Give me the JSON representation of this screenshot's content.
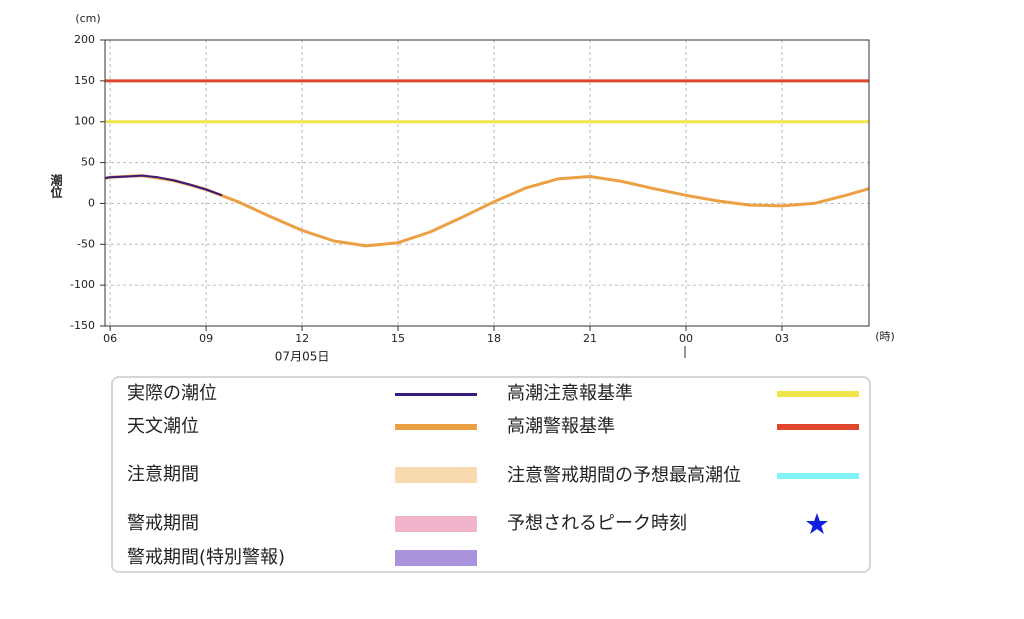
{
  "chart_data": {
    "type": "line",
    "y_unit": "(cm)",
    "x_unit": "(時)",
    "ylabel": "潮位",
    "xlim": [
      5.84,
      29.72
    ],
    "xticks": [
      {
        "value": 6,
        "label": "06"
      },
      {
        "value": 9,
        "label": "09"
      },
      12,
      15,
      18,
      21,
      {
        "value": 24,
        "label": "00"
      },
      {
        "value": 27,
        "label": "03"
      }
    ],
    "date_label": {
      "value": 12,
      "label": "07月05日"
    },
    "ylim": [
      -150,
      200
    ],
    "yticks": [
      200,
      150,
      100,
      50,
      0,
      -50,
      -100,
      -150
    ],
    "grid": true,
    "series": [
      {
        "name": "実際の潮位",
        "color": "#3a1a7a",
        "x": [
          5.84,
          6,
          6.5,
          7,
          7.5,
          8,
          8.5,
          9,
          9.5
        ],
        "values": [
          31,
          32,
          33,
          34,
          32,
          28,
          23,
          17,
          10
        ]
      },
      {
        "name": "天文潮位",
        "color": "#eba044",
        "x": [
          5.84,
          6,
          7,
          8,
          9,
          10,
          11,
          12,
          13,
          14,
          15,
          16,
          17,
          18,
          19,
          20,
          21,
          22,
          23,
          24,
          25,
          26,
          27,
          28,
          29,
          29.72
        ],
        "values": [
          31,
          32,
          34,
          28,
          17,
          2,
          -16,
          -33,
          -46,
          -52,
          -48,
          -35,
          -17,
          2,
          19,
          30,
          33,
          27,
          18,
          10,
          3,
          -2,
          -3,
          0,
          10,
          18
        ]
      }
    ],
    "reference_lines": [
      {
        "name": "高潮注意報基準",
        "value": 100,
        "color": "#f0e44a"
      },
      {
        "name": "高潮警報基準",
        "value": 150,
        "color": "#e0462e"
      }
    ],
    "legend_extra": [
      {
        "name": "注意期間",
        "color": "#f8d9b0",
        "marker": "band"
      },
      {
        "name": "警戒期間",
        "color": "#f2b3cc",
        "marker": "band"
      },
      {
        "name": "警戒期間(特別警報)",
        "color": "#a993db",
        "marker": "band"
      },
      {
        "name": "注意警戒期間の予想最高潮位",
        "color": "#7ff3f5",
        "marker": "line"
      },
      {
        "name": "予想されるピーク時刻",
        "color": "#1020e0",
        "marker": "star"
      }
    ]
  }
}
